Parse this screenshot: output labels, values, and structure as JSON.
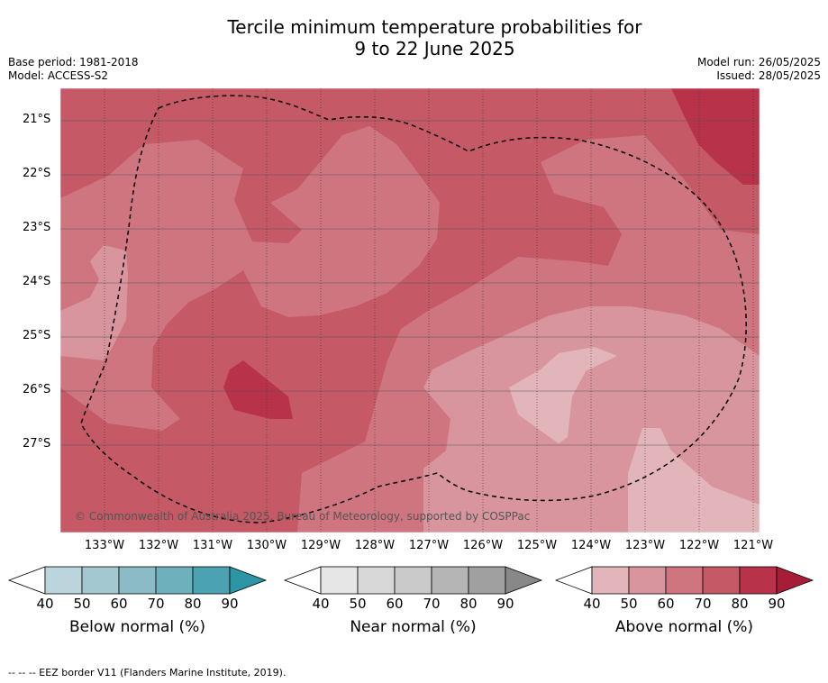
{
  "title_line1": "Tercile minimum temperature probabilities for",
  "title_line2": "9 to 22 June 2025",
  "meta_left": [
    "Base period: 1981-2018",
    "Model: ACCESS-S2"
  ],
  "meta_right": [
    "Model run: 26/05/2025",
    "Issued: 28/05/2025"
  ],
  "map": {
    "latitudes": [
      "21°S",
      "22°S",
      "23°S",
      "24°S",
      "25°S",
      "26°S",
      "27°S"
    ],
    "longitudes": [
      "133°W",
      "132°W",
      "131°W",
      "130°W",
      "129°W",
      "128°W",
      "127°W",
      "126°W",
      "125°W",
      "124°W",
      "123°W",
      "122°W",
      "121°W"
    ],
    "copyright": "© Commonwealth of Australia 2025, Bureau of Meteorology, supported by COSPPac"
  },
  "legends": [
    {
      "title": "Below normal (%)",
      "ticks": [
        "40",
        "50",
        "60",
        "70",
        "80",
        "90"
      ],
      "colors": [
        "#bcd5dc",
        "#a4c8d0",
        "#8bbcc5",
        "#6eb0bc",
        "#4ba3b1",
        "#2e95a5"
      ]
    },
    {
      "title": "Near normal (%)",
      "ticks": [
        "40",
        "50",
        "60",
        "70",
        "80",
        "90"
      ],
      "colors": [
        "#e6e6e6",
        "#d8d8d8",
        "#cacaca",
        "#b5b5b5",
        "#a0a0a0",
        "#888888"
      ]
    },
    {
      "title": "Above normal (%)",
      "ticks": [
        "40",
        "50",
        "60",
        "70",
        "80",
        "90"
      ],
      "colors": [
        "#e2b5bb",
        "#d8959d",
        "#cf7580",
        "#c55965",
        "#b8334a",
        "#a71d38"
      ]
    }
  ],
  "footnote": "--  --  -- EEZ border V11 (Flanders Marine Institute, 2019)."
}
